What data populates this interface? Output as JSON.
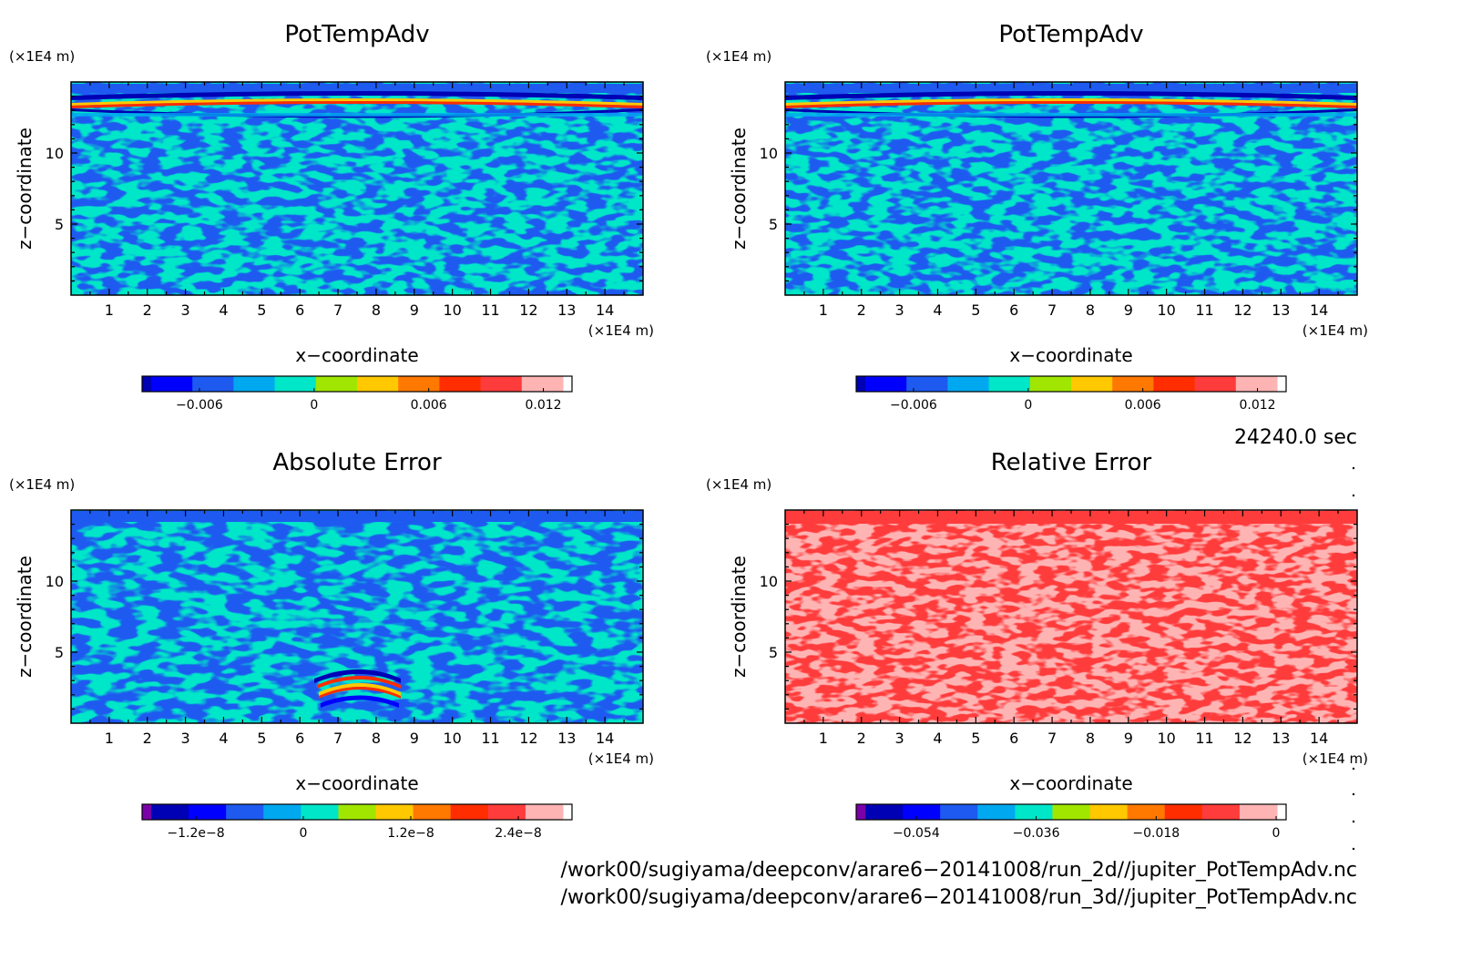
{
  "colors": {
    "frame": "#000000",
    "background": "#ffffff",
    "palette": [
      "#7a00a8",
      "#0000b4",
      "#0000ff",
      "#1e5af0",
      "#00a8f0",
      "#00e6c8",
      "#a0e600",
      "#ffc800",
      "#ff7800",
      "#ff2d00",
      "#ff3c3c",
      "#ffb4b4"
    ]
  },
  "chart_data": [
    {
      "type": "heatmap",
      "title": "PotTempAdv",
      "xlabel": "x−coordinate",
      "ylabel": "z−coordinate",
      "x_unit": "(×1E4 m)",
      "y_unit": "(×1E4 m)",
      "xlim": [
        0,
        15
      ],
      "ylim": [
        0,
        15
      ],
      "x_ticks": [
        "1",
        "2",
        "3",
        "4",
        "5",
        "6",
        "7",
        "8",
        "9",
        "10",
        "11",
        "12",
        "13",
        "14"
      ],
      "y_ticks": [
        "5",
        "10"
      ],
      "colorbar": {
        "levels": 11,
        "tick_labels": [
          "−0.006",
          "0",
          "0.006",
          "0.012"
        ],
        "tick_values": [
          -0.006,
          0,
          0.006,
          0.012
        ],
        "range": [
          -0.009,
          0.0135
        ]
      }
    },
    {
      "type": "heatmap",
      "title": "PotTempAdv",
      "xlabel": "x−coordinate",
      "ylabel": "z−coordinate",
      "x_unit": "(×1E4 m)",
      "y_unit": "(×1E4 m)",
      "xlim": [
        0,
        15
      ],
      "ylim": [
        0,
        15
      ],
      "x_ticks": [
        "1",
        "2",
        "3",
        "4",
        "5",
        "6",
        "7",
        "8",
        "9",
        "10",
        "11",
        "12",
        "13",
        "14"
      ],
      "y_ticks": [
        "5",
        "10"
      ],
      "colorbar": {
        "levels": 11,
        "tick_labels": [
          "−0.006",
          "0",
          "0.006",
          "0.012"
        ],
        "tick_values": [
          -0.006,
          0,
          0.006,
          0.012
        ],
        "range": [
          -0.009,
          0.0135
        ]
      }
    },
    {
      "type": "heatmap",
      "title": "Absolute Error",
      "xlabel": "x−coordinate",
      "ylabel": "z−coordinate",
      "x_unit": "(×1E4 m)",
      "y_unit": "(×1E4 m)",
      "xlim": [
        0,
        15
      ],
      "ylim": [
        0,
        15
      ],
      "x_ticks": [
        "1",
        "2",
        "3",
        "4",
        "5",
        "6",
        "7",
        "8",
        "9",
        "10",
        "11",
        "12",
        "13",
        "14"
      ],
      "y_ticks": [
        "5",
        "10"
      ],
      "colorbar": {
        "levels": 12,
        "tick_labels": [
          "−1.2e−8",
          "0",
          "1.2e−8",
          "2.4e−8"
        ],
        "tick_values": [
          -1.2e-08,
          0,
          1.2e-08,
          2.4e-08
        ],
        "range": [
          -1.8e-08,
          3e-08
        ]
      }
    },
    {
      "type": "heatmap",
      "title": "Relative Error",
      "xlabel": "x−coordinate",
      "ylabel": "z−coordinate",
      "x_unit": "(×1E4 m)",
      "y_unit": "(×1E4 m)",
      "xlim": [
        0,
        15
      ],
      "ylim": [
        0,
        15
      ],
      "x_ticks": [
        "1",
        "2",
        "3",
        "4",
        "5",
        "6",
        "7",
        "8",
        "9",
        "10",
        "11",
        "12",
        "13",
        "14"
      ],
      "y_ticks": [
        "5",
        "10"
      ],
      "colorbar": {
        "levels": 12,
        "tick_labels": [
          "−0.054",
          "−0.036",
          "−0.018",
          "0"
        ],
        "tick_values": [
          -0.054,
          -0.036,
          -0.018,
          0
        ],
        "range": [
          -0.063,
          0.0015
        ]
      }
    }
  ],
  "info": {
    "time": "24240.0 sec",
    "files": [
      "/work00/sugiyama/deepconv/arare6−20141008/run_2d//jupiter_PotTempAdv.nc",
      "/work00/sugiyama/deepconv/arare6−20141008/run_3d//jupiter_PotTempAdv.nc"
    ]
  }
}
